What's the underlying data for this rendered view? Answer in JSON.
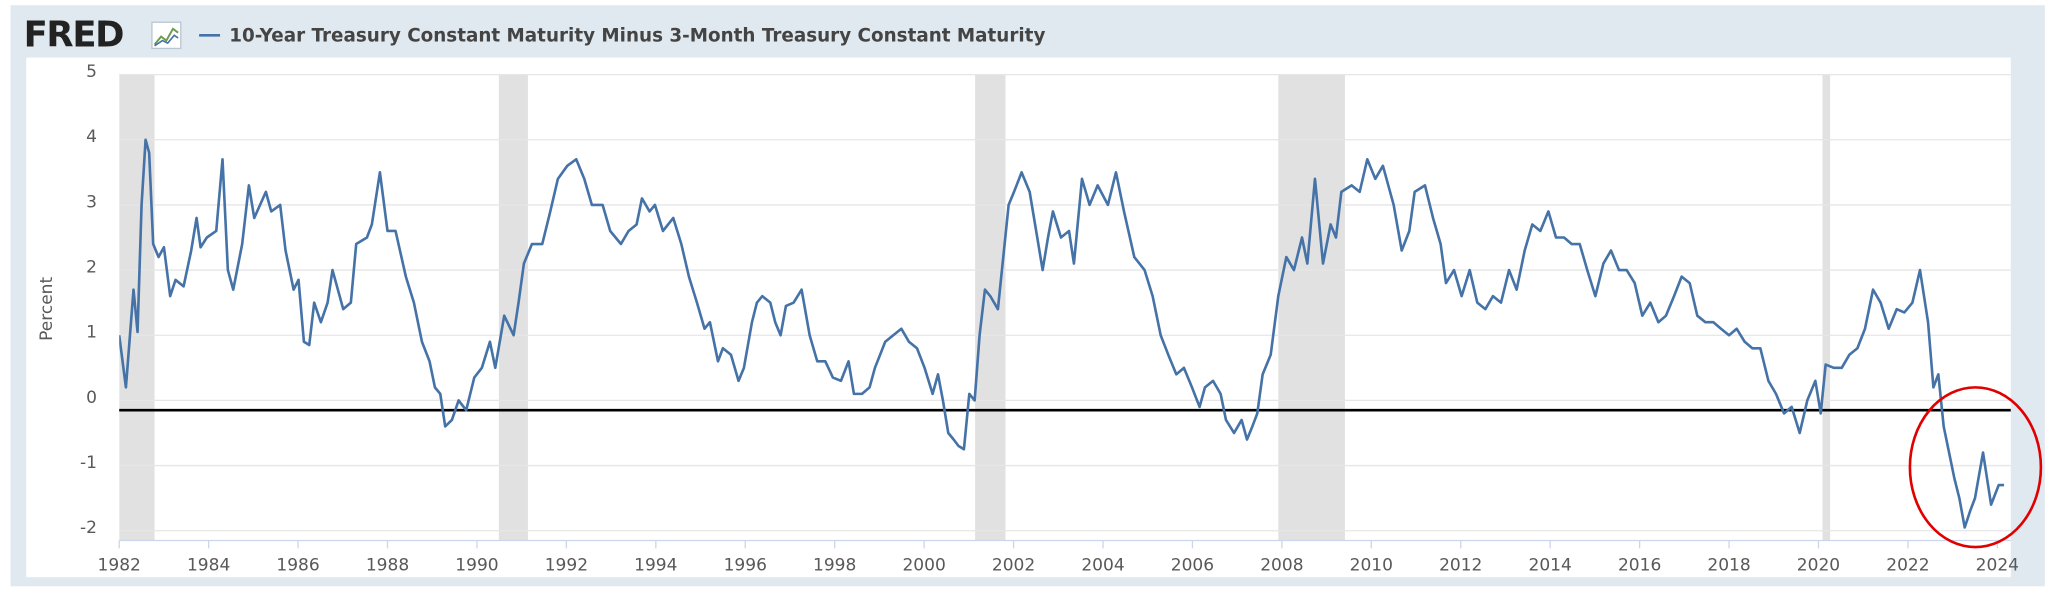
{
  "chart_data": {
    "type": "line",
    "logo": "FRED",
    "ylabel": "Percent",
    "xlim": [
      1982,
      2024.3
    ],
    "ylim": [
      -2.15,
      5
    ],
    "xticks": [
      1982,
      1984,
      1986,
      1988,
      1990,
      1992,
      1994,
      1996,
      1998,
      2000,
      2002,
      2004,
      2006,
      2008,
      2010,
      2012,
      2014,
      2016,
      2018,
      2020,
      2022,
      2024
    ],
    "yticks": [
      -2,
      -1,
      0,
      1,
      2,
      3,
      4,
      5
    ],
    "grid": true,
    "reference_line": -0.15,
    "recessions": [
      [
        1982.0,
        1982.79
      ],
      [
        1990.49,
        1991.14
      ],
      [
        2001.14,
        2001.82
      ],
      [
        2007.92,
        2009.41
      ],
      [
        2020.09,
        2020.26
      ]
    ],
    "recession_color": "#e1e1e1",
    "x": [
      1982.0,
      1982.15,
      1982.32,
      1982.41,
      1982.5,
      1982.59,
      1982.67,
      1982.76,
      1982.88,
      1983.0,
      1983.14,
      1983.26,
      1983.44,
      1983.61,
      1983.73,
      1983.82,
      1983.96,
      1984.17,
      1984.31,
      1984.43,
      1984.55,
      1984.75,
      1984.9,
      1985.02,
      1985.28,
      1985.4,
      1985.6,
      1985.72,
      1985.9,
      1986.01,
      1986.13,
      1986.25,
      1986.36,
      1986.51,
      1986.66,
      1986.77,
      1987.01,
      1987.18,
      1987.3,
      1987.54,
      1987.65,
      1987.83,
      1988.0,
      1988.18,
      1988.41,
      1988.59,
      1988.77,
      1988.94,
      1989.06,
      1989.18,
      1989.29,
      1989.44,
      1989.59,
      1989.76,
      1989.94,
      1990.11,
      1990.29,
      1990.41,
      1990.61,
      1990.82,
      1990.93,
      1991.05,
      1991.23,
      1991.46,
      1991.64,
      1991.81,
      1992.02,
      1992.22,
      1992.4,
      1992.57,
      1992.81,
      1992.98,
      1993.22,
      1993.39,
      1993.57,
      1993.69,
      1993.86,
      1993.98,
      1994.16,
      1994.39,
      1994.57,
      1994.74,
      1994.92,
      1995.09,
      1995.21,
      1995.39,
      1995.5,
      1995.68,
      1995.85,
      1995.97,
      1996.15,
      1996.26,
      1996.38,
      1996.56,
      1996.67,
      1996.79,
      1996.91,
      1997.08,
      1997.26,
      1997.44,
      1997.61,
      1997.79,
      1997.96,
      1998.14,
      1998.31,
      1998.43,
      1998.61,
      1998.78,
      1998.9,
      1999.13,
      1999.31,
      1999.49,
      1999.66,
      1999.84,
      2000.01,
      2000.19,
      2000.31,
      2000.42,
      2000.54,
      2000.66,
      2000.77,
      2000.89,
      2001.01,
      2001.13,
      2001.24,
      2001.36,
      2001.48,
      2001.65,
      2001.77,
      2001.89,
      2002.01,
      2002.18,
      2002.36,
      2002.53,
      2002.65,
      2002.77,
      2002.88,
      2003.06,
      2003.24,
      2003.35,
      2003.53,
      2003.7,
      2003.88,
      2004.11,
      2004.29,
      2004.47,
      2004.7,
      2004.93,
      2005.11,
      2005.29,
      2005.46,
      2005.64,
      2005.81,
      2005.99,
      2006.16,
      2006.28,
      2006.46,
      2006.63,
      2006.75,
      2006.93,
      2007.1,
      2007.22,
      2007.34,
      2007.45,
      2007.57,
      2007.75,
      2007.92,
      2008.1,
      2008.27,
      2008.45,
      2008.57,
      2008.74,
      2008.92,
      2009.09,
      2009.21,
      2009.33,
      2009.56,
      2009.74,
      2009.91,
      2010.09,
      2010.26,
      2010.5,
      2010.68,
      2010.85,
      2010.97,
      2011.2,
      2011.38,
      2011.55,
      2011.67,
      2011.85,
      2012.02,
      2012.2,
      2012.37,
      2012.55,
      2012.72,
      2012.9,
      2013.08,
      2013.25,
      2013.43,
      2013.6,
      2013.78,
      2013.96,
      2014.13,
      2014.31,
      2014.48,
      2014.66,
      2014.83,
      2015.01,
      2015.19,
      2015.36,
      2015.54,
      2015.71,
      2015.89,
      2016.06,
      2016.24,
      2016.42,
      2016.59,
      2016.77,
      2016.94,
      2017.12,
      2017.29,
      2017.47,
      2017.65,
      2017.82,
      2018.0,
      2018.17,
      2018.35,
      2018.52,
      2018.7,
      2018.88,
      2019.05,
      2019.23,
      2019.4,
      2019.58,
      2019.75,
      2019.93,
      2020.05,
      2020.16,
      2020.34,
      2020.52,
      2020.69,
      2020.87,
      2021.04,
      2021.22,
      2021.39,
      2021.57,
      2021.75,
      2021.92,
      2022.1,
      2022.27,
      2022.45,
      2022.57,
      2022.68,
      2022.8,
      2022.92,
      2023.04,
      2023.15,
      2023.27,
      2023.39,
      2023.5,
      2023.68,
      2023.86,
      2024.03,
      2024.15
    ],
    "series": [
      {
        "name": "10-Year Treasury Constant Maturity Minus 3-Month Treasury Constant Maturity",
        "color": "#4572a7",
        "values": [
          1.0,
          0.2,
          1.7,
          1.05,
          3.0,
          4.0,
          3.8,
          2.4,
          2.2,
          2.35,
          1.6,
          1.85,
          1.75,
          2.3,
          2.8,
          2.35,
          2.5,
          2.6,
          3.7,
          2.0,
          1.7,
          2.4,
          3.3,
          2.8,
          3.2,
          2.9,
          3.0,
          2.3,
          1.7,
          1.85,
          0.9,
          0.85,
          1.5,
          1.2,
          1.5,
          2.0,
          1.4,
          1.5,
          2.4,
          2.5,
          2.7,
          3.5,
          2.6,
          2.6,
          1.9,
          1.5,
          0.9,
          0.6,
          0.2,
          0.1,
          -0.4,
          -0.3,
          0.0,
          -0.15,
          0.35,
          0.5,
          0.9,
          0.5,
          1.3,
          1.0,
          1.5,
          2.1,
          2.4,
          2.4,
          2.9,
          3.4,
          3.6,
          3.7,
          3.4,
          3.0,
          3.0,
          2.6,
          2.4,
          2.6,
          2.7,
          3.1,
          2.9,
          3.0,
          2.6,
          2.8,
          2.4,
          1.9,
          1.5,
          1.1,
          1.2,
          0.6,
          0.8,
          0.7,
          0.3,
          0.5,
          1.2,
          1.5,
          1.6,
          1.5,
          1.2,
          1.0,
          1.45,
          1.5,
          1.7,
          1.0,
          0.6,
          0.6,
          0.35,
          0.3,
          0.6,
          0.1,
          0.1,
          0.2,
          0.5,
          0.9,
          1.0,
          1.1,
          0.9,
          0.8,
          0.5,
          0.1,
          0.4,
          0.0,
          -0.5,
          -0.6,
          -0.7,
          -0.75,
          0.1,
          0.0,
          1.0,
          1.7,
          1.6,
          1.4,
          2.2,
          3.0,
          3.2,
          3.5,
          3.2,
          2.5,
          2.0,
          2.5,
          2.9,
          2.5,
          2.6,
          2.1,
          3.4,
          3.0,
          3.3,
          3.0,
          3.5,
          2.9,
          2.2,
          2.0,
          1.6,
          1.0,
          0.7,
          0.4,
          0.5,
          0.2,
          -0.1,
          0.2,
          0.3,
          0.1,
          -0.3,
          -0.5,
          -0.3,
          -0.6,
          -0.4,
          -0.2,
          0.4,
          0.7,
          1.6,
          2.2,
          2.0,
          2.5,
          2.1,
          3.4,
          2.1,
          2.7,
          2.5,
          3.2,
          3.3,
          3.2,
          3.7,
          3.4,
          3.6,
          3.0,
          2.3,
          2.6,
          3.2,
          3.3,
          2.8,
          2.4,
          1.8,
          2.0,
          1.6,
          2.0,
          1.5,
          1.4,
          1.6,
          1.5,
          2.0,
          1.7,
          2.3,
          2.7,
          2.6,
          2.9,
          2.5,
          2.5,
          2.4,
          2.4,
          2.0,
          1.6,
          2.1,
          2.3,
          2.0,
          2.0,
          1.8,
          1.3,
          1.5,
          1.2,
          1.3,
          1.6,
          1.9,
          1.8,
          1.3,
          1.2,
          1.2,
          1.1,
          1.0,
          1.1,
          0.9,
          0.8,
          0.8,
          0.3,
          0.1,
          -0.2,
          -0.1,
          -0.5,
          0.0,
          0.3,
          -0.2,
          0.55,
          0.5,
          0.5,
          0.7,
          0.8,
          1.1,
          1.7,
          1.5,
          1.1,
          1.4,
          1.35,
          1.5,
          2.0,
          1.2,
          0.2,
          0.4,
          -0.4,
          -0.8,
          -1.2,
          -1.5,
          -1.95,
          -1.7,
          -1.5,
          -0.8,
          -1.6,
          -1.3,
          -1.3
        ]
      }
    ]
  }
}
